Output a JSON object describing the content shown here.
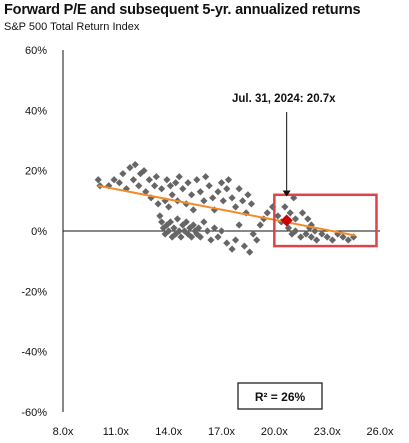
{
  "chart_data": {
    "type": "scatter",
    "title": "Forward P/E and subsequent 5-yr. annualized returns",
    "subtitle": "S&P 500 Total Return Index",
    "xlabel": "",
    "ylabel": "",
    "xlim": [
      8.0,
      26.0
    ],
    "ylim": [
      -60,
      60
    ],
    "x_ticks": [
      8.0,
      11.0,
      14.0,
      17.0,
      20.0,
      23.0,
      26.0
    ],
    "x_tick_labels": [
      "8.0x",
      "11.0x",
      "14.0x",
      "17.0x",
      "20.0x",
      "23.0x",
      "26.0x"
    ],
    "y_ticks": [
      -60,
      -40,
      -20,
      0,
      20,
      40,
      60
    ],
    "y_tick_labels": [
      "-60%",
      "-40%",
      "-20%",
      "0%",
      "20%",
      "40%",
      "60%"
    ],
    "grid": false,
    "colors": {
      "points": "#666666",
      "trendline": "#F28C28",
      "highlight_marker": "#CC0000",
      "highlight_box": "#E0424A"
    },
    "points": [
      [
        10.0,
        17
      ],
      [
        10.1,
        15
      ],
      [
        10.6,
        15
      ],
      [
        10.9,
        17
      ],
      [
        11.2,
        16
      ],
      [
        11.4,
        19
      ],
      [
        11.6,
        14
      ],
      [
        11.8,
        21
      ],
      [
        12.0,
        17
      ],
      [
        12.1,
        22
      ],
      [
        12.3,
        15
      ],
      [
        12.4,
        19
      ],
      [
        12.6,
        20
      ],
      [
        12.7,
        13
      ],
      [
        12.9,
        17
      ],
      [
        13.0,
        11
      ],
      [
        13.2,
        15
      ],
      [
        13.3,
        18
      ],
      [
        13.4,
        9
      ],
      [
        13.6,
        14
      ],
      [
        13.8,
        10
      ],
      [
        13.9,
        17
      ],
      [
        14.0,
        8
      ],
      [
        14.1,
        15
      ],
      [
        14.2,
        12
      ],
      [
        14.4,
        16
      ],
      [
        14.5,
        10
      ],
      [
        14.6,
        18
      ],
      [
        14.8,
        14
      ],
      [
        15.0,
        9
      ],
      [
        15.1,
        16
      ],
      [
        15.3,
        12
      ],
      [
        15.4,
        7
      ],
      [
        15.6,
        17
      ],
      [
        15.8,
        13
      ],
      [
        16.0,
        10
      ],
      [
        16.1,
        18
      ],
      [
        16.3,
        15
      ],
      [
        16.5,
        11
      ],
      [
        16.6,
        7
      ],
      [
        16.8,
        13
      ],
      [
        17.0,
        16
      ],
      [
        17.1,
        10
      ],
      [
        17.3,
        14
      ],
      [
        17.4,
        17
      ],
      [
        17.6,
        11
      ],
      [
        17.8,
        8
      ],
      [
        18.0,
        14
      ],
      [
        18.2,
        10
      ],
      [
        18.4,
        6
      ],
      [
        18.5,
        12
      ],
      [
        18.7,
        9
      ],
      [
        13.5,
        5
      ],
      [
        13.6,
        3
      ],
      [
        13.7,
        1
      ],
      [
        13.8,
        -1
      ],
      [
        13.9,
        2
      ],
      [
        14.0,
        0
      ],
      [
        14.1,
        3
      ],
      [
        14.2,
        -2
      ],
      [
        14.3,
        1
      ],
      [
        14.4,
        -1
      ],
      [
        14.5,
        4
      ],
      [
        14.6,
        0
      ],
      [
        14.7,
        -2
      ],
      [
        14.8,
        2
      ],
      [
        14.9,
        0
      ],
      [
        15.0,
        3
      ],
      [
        15.1,
        -1
      ],
      [
        15.2,
        1
      ],
      [
        15.3,
        -2
      ],
      [
        15.4,
        2
      ],
      [
        15.5,
        0
      ],
      [
        15.6,
        -1
      ],
      [
        15.7,
        1
      ],
      [
        15.8,
        -2
      ],
      [
        16.0,
        3
      ],
      [
        16.2,
        0
      ],
      [
        16.4,
        -3
      ],
      [
        16.6,
        1
      ],
      [
        16.8,
        -2
      ],
      [
        17.0,
        0
      ],
      [
        17.3,
        -4
      ],
      [
        17.6,
        -6
      ],
      [
        17.8,
        -3
      ],
      [
        18.0,
        2
      ],
      [
        18.3,
        -5
      ],
      [
        18.6,
        -7
      ],
      [
        18.8,
        -1
      ],
      [
        19.0,
        -3
      ],
      [
        19.2,
        2
      ],
      [
        19.4,
        4
      ],
      [
        19.6,
        6
      ],
      [
        19.9,
        8
      ],
      [
        20.2,
        5
      ],
      [
        20.4,
        3
      ],
      [
        20.6,
        8
      ],
      [
        20.9,
        6
      ],
      [
        21.1,
        11
      ],
      [
        21.2,
        4
      ],
      [
        21.6,
        6
      ],
      [
        21.9,
        4
      ],
      [
        22.1,
        2
      ],
      [
        22.3,
        0
      ],
      [
        22.1,
        -2
      ],
      [
        20.8,
        1
      ],
      [
        21.0,
        -1
      ],
      [
        21.2,
        0
      ],
      [
        21.5,
        -2
      ],
      [
        21.8,
        -1
      ],
      [
        22.0,
        1
      ],
      [
        22.4,
        -3
      ],
      [
        22.7,
        -1
      ],
      [
        23.0,
        -2
      ],
      [
        23.3,
        -3
      ],
      [
        23.6,
        -1
      ],
      [
        23.9,
        -2
      ],
      [
        24.2,
        -3
      ],
      [
        24.5,
        -2
      ]
    ],
    "trendline": {
      "x": [
        10.0,
        24.6
      ],
      "y": [
        15.0,
        -1.5
      ]
    },
    "highlight_point": {
      "x": 20.7,
      "y": 3.5
    },
    "highlight_range": {
      "x": [
        20.0,
        25.8
      ],
      "y": [
        -5,
        12
      ]
    },
    "annotation": "Jul. 31, 2024:  20.7x",
    "r_squared": "R²  = 26%"
  }
}
